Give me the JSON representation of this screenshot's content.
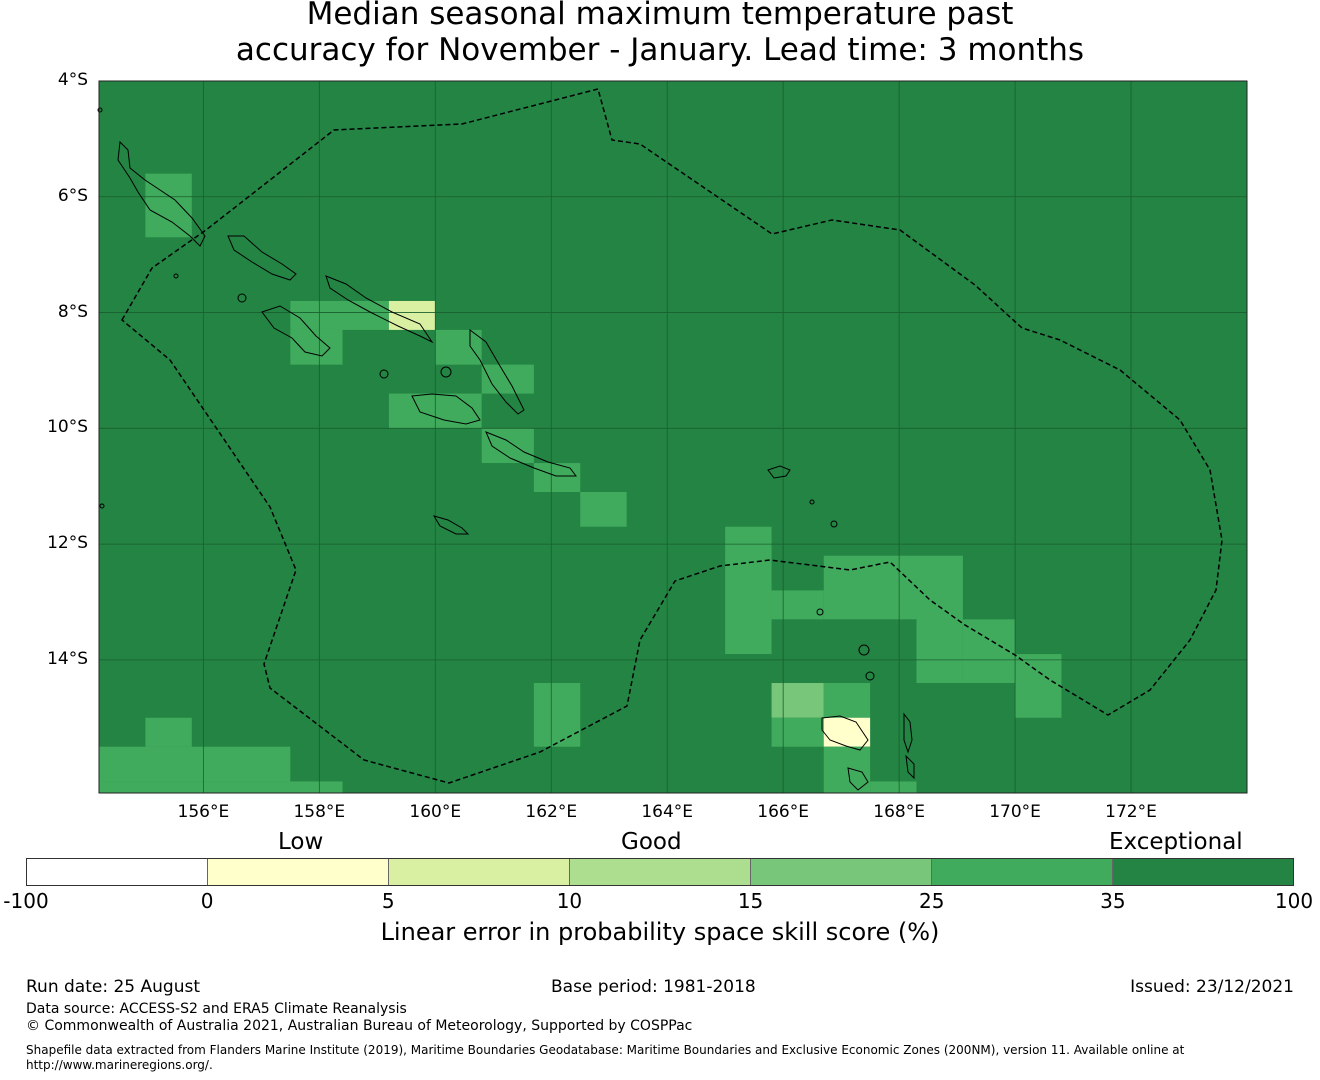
{
  "title": {
    "line1": "Median seasonal maximum temperature past",
    "line2": "accuracy for November - January. Lead time: 3 months"
  },
  "map": {
    "lat_labels": [
      "4°S",
      "6°S",
      "8°S",
      "10°S",
      "12°S",
      "14°S"
    ],
    "lon_labels": [
      "156°E",
      "158°E",
      "160°E",
      "162°E",
      "164°E",
      "166°E",
      "168°E",
      "170°E",
      "172°E"
    ],
    "lon_range": [
      154.2,
      174.0
    ],
    "lat_range": [
      -16.3,
      -4.0
    ],
    "background_category": "35-100",
    "cells": [
      {
        "lon": [
          155.0,
          155.8
        ],
        "lat": [
          -5.6,
          -6.7
        ],
        "band": "25-35"
      },
      {
        "lon": [
          157.5,
          159.2
        ],
        "lat": [
          -7.8,
          -8.3
        ],
        "band": "25-35"
      },
      {
        "lon": [
          157.5,
          158.4
        ],
        "lat": [
          -8.3,
          -8.9
        ],
        "band": "25-35"
      },
      {
        "lon": [
          159.2,
          160.0
        ],
        "lat": [
          -7.8,
          -8.3
        ],
        "band": "5-10"
      },
      {
        "lon": [
          160.0,
          160.8
        ],
        "lat": [
          -8.3,
          -8.9
        ],
        "band": "25-35"
      },
      {
        "lon": [
          160.8,
          161.7
        ],
        "lat": [
          -8.9,
          -9.4
        ],
        "band": "25-35"
      },
      {
        "lon": [
          159.2,
          160.8
        ],
        "lat": [
          -9.4,
          -10.0
        ],
        "band": "25-35"
      },
      {
        "lon": [
          160.8,
          161.7
        ],
        "lat": [
          -10.0,
          -10.6
        ],
        "band": "25-35"
      },
      {
        "lon": [
          161.7,
          162.5
        ],
        "lat": [
          -10.6,
          -11.1
        ],
        "band": "25-35"
      },
      {
        "lon": [
          162.5,
          163.3
        ],
        "lat": [
          -11.1,
          -11.7
        ],
        "band": "25-35"
      },
      {
        "lon": [
          165.0,
          165.8
        ],
        "lat": [
          -11.7,
          -13.9
        ],
        "band": "25-35"
      },
      {
        "lon": [
          165.8,
          166.7
        ],
        "lat": [
          -12.8,
          -13.3
        ],
        "band": "25-35"
      },
      {
        "lon": [
          166.7,
          168.3
        ],
        "lat": [
          -12.2,
          -13.3
        ],
        "band": "25-35"
      },
      {
        "lon": [
          168.3,
          169.1
        ],
        "lat": [
          -12.2,
          -14.4
        ],
        "band": "25-35"
      },
      {
        "lon": [
          169.1,
          170.0
        ],
        "lat": [
          -13.3,
          -14.4
        ],
        "band": "25-35"
      },
      {
        "lon": [
          170.0,
          170.8
        ],
        "lat": [
          -13.9,
          -15.0
        ],
        "band": "25-35"
      },
      {
        "lon": [
          161.7,
          162.5
        ],
        "lat": [
          -14.4,
          -15.5
        ],
        "band": "25-35"
      },
      {
        "lon": [
          165.8,
          166.7
        ],
        "lat": [
          -14.4,
          -15.0
        ],
        "band": "15-25"
      },
      {
        "lon": [
          166.7,
          167.5
        ],
        "lat": [
          -14.4,
          -15.0
        ],
        "band": "25-35"
      },
      {
        "lon": [
          165.8,
          166.7
        ],
        "lat": [
          -15.0,
          -15.5
        ],
        "band": "25-35"
      },
      {
        "lon": [
          166.7,
          167.5
        ],
        "lat": [
          -15.0,
          -15.5
        ],
        "band": "0-5"
      },
      {
        "lon": [
          166.7,
          167.5
        ],
        "lat": [
          -15.5,
          -16.3
        ],
        "band": "25-35"
      },
      {
        "lon": [
          167.5,
          168.3
        ],
        "lat": [
          -16.1,
          -16.3
        ],
        "band": "25-35"
      },
      {
        "lon": [
          155.0,
          155.8
        ],
        "lat": [
          -15.0,
          -15.5
        ],
        "band": "25-35"
      },
      {
        "lon": [
          154.2,
          157.5
        ],
        "lat": [
          -15.5,
          -16.1
        ],
        "band": "25-35"
      },
      {
        "lon": [
          154.2,
          158.4
        ],
        "lat": [
          -16.1,
          -16.3
        ],
        "band": "25-35"
      }
    ]
  },
  "legend": {
    "category_labels": [
      "Low",
      "Good",
      "Exceptional"
    ],
    "bands": [
      {
        "range": "-100-0",
        "color": "#ffffff"
      },
      {
        "range": "0-5",
        "color": "#ffffcc"
      },
      {
        "range": "5-10",
        "color": "#d9f0a3"
      },
      {
        "range": "10-15",
        "color": "#addd8e"
      },
      {
        "range": "15-25",
        "color": "#78c679"
      },
      {
        "range": "25-35",
        "color": "#41ab5d"
      },
      {
        "range": "35-100",
        "color": "#238443"
      }
    ],
    "ticks": [
      "-100",
      "0",
      "5",
      "10",
      "15",
      "25",
      "35",
      "100"
    ],
    "title": "Linear error in probability space skill score (%)"
  },
  "footer": {
    "run_date": "Run date: 25 August",
    "base_period": "Base period: 1981-2018",
    "issued": "Issued: 23/12/2021",
    "data_source": "Data source: ACCESS-S2 and ERA5 Climate Reanalysis",
    "copyright": "© Commonwealth of Australia 2021, Australian Bureau of Meteorology, Supported by COSPPac",
    "shapefile_line1": "Shapefile data extracted from Flanders Marine Institute (2019), Maritime Boundaries Geodatabase: Maritime Boundaries and Exclusive Economic Zones (200NM), version 11. Available online at",
    "shapefile_line2": "http://www.marineregions.org/."
  }
}
